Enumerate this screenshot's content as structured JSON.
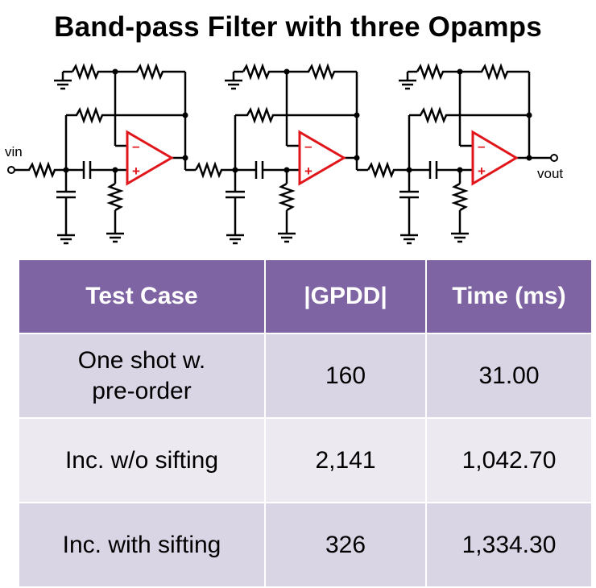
{
  "title": "Band-pass Filter with three Opamps",
  "circuit": {
    "input_label": "vin",
    "output_label": "vout",
    "opamp_color": "#e0161b",
    "stages": [
      {
        "minus": "–",
        "plus": "+"
      },
      {
        "minus": "–",
        "plus": "+"
      },
      {
        "minus": "–",
        "plus": "+"
      }
    ]
  },
  "table": {
    "header_color": "#7e64a3",
    "row_colors": [
      "#d9d5e4",
      "#ece9f1"
    ],
    "headers": [
      "Test Case",
      "|GPDD|",
      "Time (ms)"
    ],
    "rows": [
      {
        "case_line1": "One shot w.",
        "case_line2": "pre-order",
        "gpdd": "160",
        "time": "31.00"
      },
      {
        "case": "Inc. w/o sifting",
        "gpdd": "2,141",
        "time": "1,042.70"
      },
      {
        "case": "Inc. with sifting",
        "gpdd": "326",
        "time": "1,334.30"
      }
    ]
  }
}
